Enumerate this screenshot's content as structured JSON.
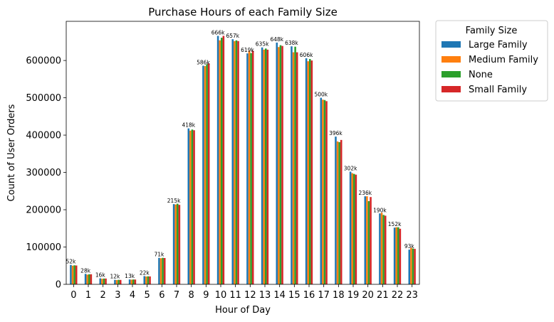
{
  "chart_data": {
    "type": "bar",
    "title": "Purchase Hours of each Family Size",
    "xlabel": "Hour of Day",
    "ylabel": "Count of User Orders",
    "ylim": [
      0,
      705000
    ],
    "yticks": [
      0,
      100000,
      200000,
      300000,
      400000,
      500000,
      600000
    ],
    "ytick_labels": [
      "0",
      "100000",
      "200000",
      "300000",
      "400000",
      "500000",
      "600000"
    ],
    "categories": [
      "0",
      "1",
      "2",
      "3",
      "4",
      "5",
      "6",
      "7",
      "8",
      "9",
      "10",
      "11",
      "12",
      "13",
      "14",
      "15",
      "16",
      "17",
      "18",
      "19",
      "20",
      "21",
      "22",
      "23"
    ],
    "grid": false,
    "legend": {
      "title": "Family Size",
      "placement": "outside-top-right"
    },
    "series": [
      {
        "name": "Large Family",
        "color": "#1f77b4",
        "values": [
          52000,
          28000,
          16000,
          12000,
          13000,
          22000,
          71000,
          215000,
          418000,
          586000,
          666000,
          657000,
          619000,
          635000,
          648000,
          638000,
          606000,
          500000,
          396000,
          302000,
          236000,
          190000,
          152000,
          93000
        ]
      },
      {
        "name": "Medium Family",
        "color": "#ff7f0e",
        "values": [
          50000,
          26000,
          15000,
          11500,
          12500,
          21000,
          70000,
          214000,
          412000,
          585000,
          654000,
          652000,
          626000,
          629000,
          636000,
          622000,
          598000,
          495000,
          383000,
          298000,
          236000,
          192000,
          153000,
          98000
        ]
      },
      {
        "name": "None",
        "color": "#2ca02c",
        "values": [
          51000,
          27000,
          15500,
          12000,
          13000,
          21500,
          71000,
          216000,
          415000,
          590000,
          661000,
          654000,
          620000,
          632000,
          641000,
          637000,
          604000,
          494000,
          381000,
          296000,
          223000,
          186000,
          153000,
          96000
        ]
      },
      {
        "name": "Small Family",
        "color": "#d62728",
        "values": [
          50500,
          27000,
          15500,
          11800,
          12800,
          21200,
          70500,
          213000,
          413000,
          592000,
          666000,
          652000,
          626000,
          629000,
          639000,
          622000,
          600000,
          491000,
          387000,
          294000,
          234000,
          184000,
          149000,
          95000
        ]
      }
    ],
    "data_labels": [
      "52k",
      "28k",
      "16k",
      "12k",
      "13k",
      "22k",
      "71k",
      "215k",
      "418k",
      "586k",
      "666k",
      "657k",
      "619k",
      "635k",
      "648k",
      "638k",
      "606k",
      "500k",
      "396k",
      "302k",
      "236k",
      "190k",
      "152k",
      "93k"
    ]
  }
}
